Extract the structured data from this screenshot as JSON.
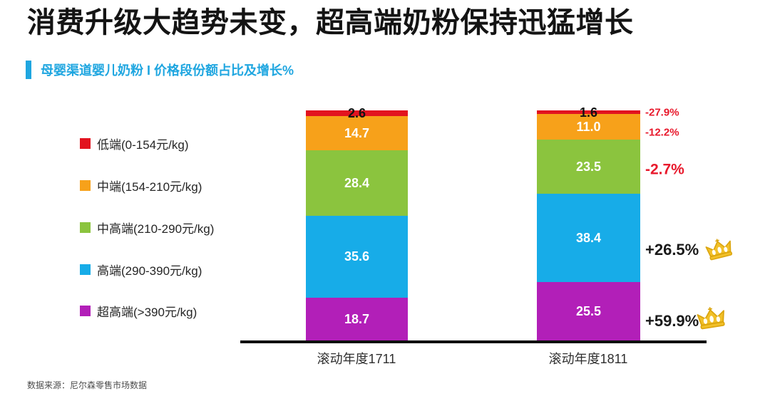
{
  "title": "消费升级大趋势未变，超高端奶粉保持迅猛增长",
  "subtitle": "母婴渠道婴儿奶粉 I 价格段份额占比及增长%",
  "footer": "数据来源：尼尔森零售市场数据",
  "colors": {
    "accent_cyan": "#1fa6e0",
    "growth_negative_red": "#e8192c",
    "growth_positive_black": "#1a1a1a",
    "axis_black": "#0d0d0d",
    "crown_gold": "#f2c028"
  },
  "chart_data": {
    "type": "bar",
    "stacked": true,
    "orientation": "vertical",
    "title": "母婴渠道婴儿奶粉 I 价格段份额占比及增长%",
    "categories": [
      "滚动年度1711",
      "滚动年度1811"
    ],
    "series": [
      {
        "name": "低端(0-154元/kg)",
        "color": "#e2131f",
        "values": [
          2.6,
          1.6
        ],
        "labels": [
          "2.6",
          "1.6"
        ],
        "growth": "-27.9%",
        "growth_style": "small-red",
        "crown": false,
        "value_label_style": "dark"
      },
      {
        "name": "中端(154-210元/kg)",
        "color": "#f7a11a",
        "values": [
          14.7,
          11.0
        ],
        "labels": [
          "14.7",
          "11.0"
        ],
        "growth": "-12.2%",
        "growth_style": "small-red",
        "crown": false,
        "value_label_style": "light"
      },
      {
        "name": "中高端(210-290元/kg)",
        "color": "#8bc43e",
        "values": [
          28.4,
          23.5
        ],
        "labels": [
          "28.4",
          "23.5"
        ],
        "growth": "-2.7%",
        "growth_style": "big-red",
        "crown": false,
        "value_label_style": "light"
      },
      {
        "name": "高端(290-390元/kg)",
        "color": "#17ace8",
        "values": [
          35.6,
          38.4
        ],
        "labels": [
          "35.6",
          "38.4"
        ],
        "growth": "+26.5%",
        "growth_style": "big-black",
        "crown": true,
        "value_label_style": "light"
      },
      {
        "name": "超高端(>390元/kg)",
        "color": "#b21fb8",
        "values": [
          18.7,
          25.5
        ],
        "labels": [
          "18.7",
          "25.5"
        ],
        "growth": "+59.9%",
        "growth_style": "big-black",
        "crown": true,
        "value_label_style": "light"
      }
    ],
    "ylim": [
      0,
      100
    ],
    "value_labels_shown": true,
    "legend_position": "left",
    "grid": false,
    "source_note": "数据来源：尼尔森零售市场数据"
  }
}
